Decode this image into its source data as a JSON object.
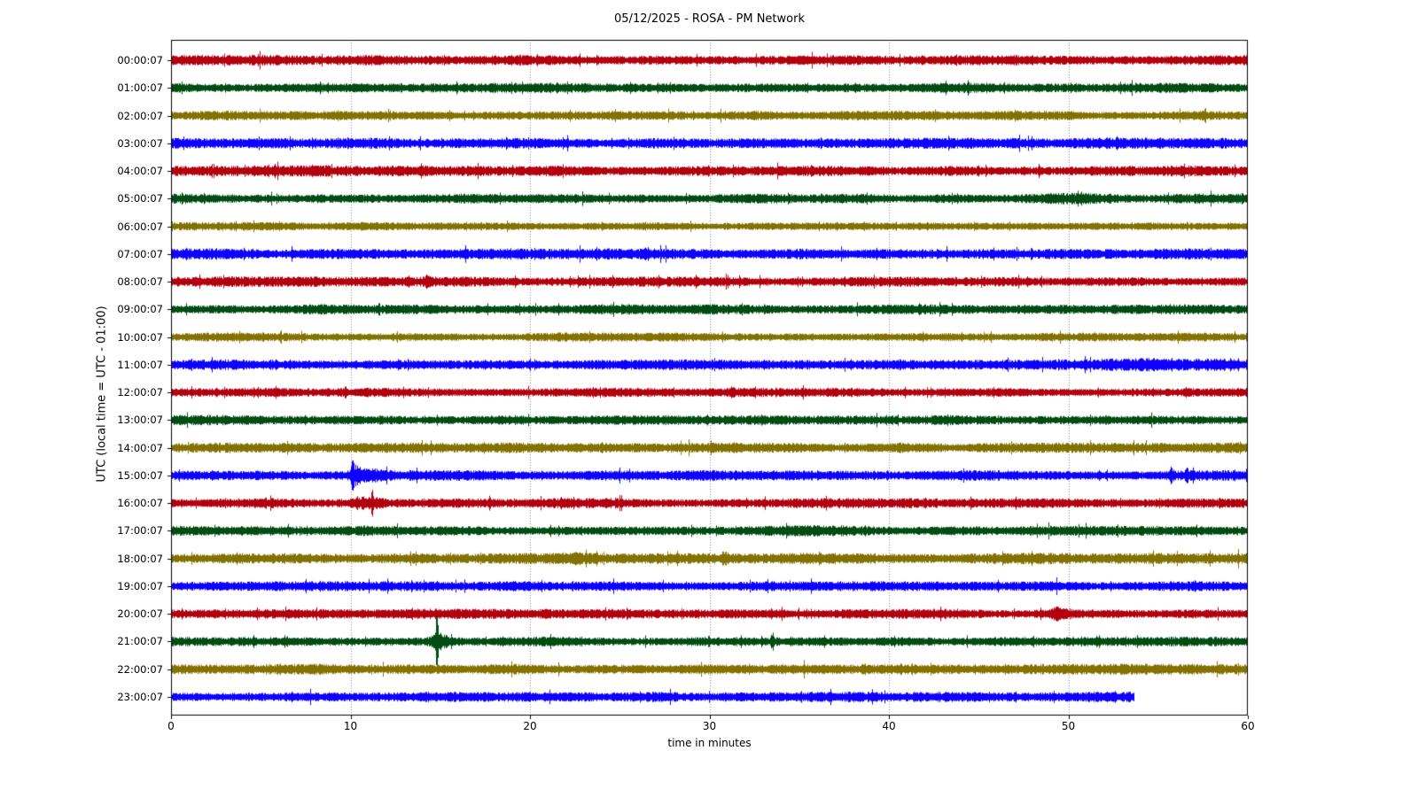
{
  "chart_data": {
    "type": "line",
    "subtype": "helicorder_dayplot",
    "title": "05/12/2025 - ROSA - PM Network",
    "xlabel": "time in minutes",
    "ylabel": "UTC (local time = UTC - 01:00)",
    "xlim": [
      0,
      60
    ],
    "x_ticks": [
      0,
      10,
      20,
      30,
      40,
      50,
      60
    ],
    "grid": {
      "vertical_dotted": true,
      "color": "#8a8a8a"
    },
    "axis_color": "#000000",
    "background_color": "#ffffff",
    "colors_cycle": [
      "#B2000F",
      "#004C12",
      "#847200",
      "#0E01FF"
    ],
    "rows": [
      {
        "label": "00:00:07",
        "color": "#B2000F",
        "amp": 1.0,
        "end_minute": 60,
        "events": []
      },
      {
        "label": "01:00:07",
        "color": "#004C12",
        "amp": 0.95,
        "end_minute": 60,
        "events": []
      },
      {
        "label": "02:00:07",
        "color": "#847200",
        "amp": 0.9,
        "end_minute": 60,
        "events": []
      },
      {
        "label": "03:00:07",
        "color": "#0E01FF",
        "amp": 1.05,
        "end_minute": 60,
        "events": []
      },
      {
        "label": "04:00:07",
        "color": "#B2000F",
        "amp": 1.0,
        "end_minute": 60,
        "events": [
          {
            "minute": 7.5,
            "gain": 1.2,
            "width": 4
          }
        ]
      },
      {
        "label": "05:00:07",
        "color": "#004C12",
        "amp": 0.95,
        "end_minute": 60,
        "events": [
          {
            "minute": 50,
            "gain": 1.3,
            "width": 1.5
          }
        ]
      },
      {
        "label": "06:00:07",
        "color": "#847200",
        "amp": 0.85,
        "end_minute": 60,
        "events": []
      },
      {
        "label": "07:00:07",
        "color": "#0E01FF",
        "amp": 1.05,
        "end_minute": 60,
        "events": []
      },
      {
        "label": "08:00:07",
        "color": "#B2000F",
        "amp": 0.95,
        "end_minute": 60,
        "events": [
          {
            "minute": 14.3,
            "gain": 1.8,
            "width": 0.08
          }
        ]
      },
      {
        "label": "09:00:07",
        "color": "#004C12",
        "amp": 1.0,
        "end_minute": 60,
        "events": []
      },
      {
        "label": "10:00:07",
        "color": "#847200",
        "amp": 0.85,
        "end_minute": 60,
        "events": []
      },
      {
        "label": "11:00:07",
        "color": "#0E01FF",
        "amp": 1.0,
        "end_minute": 60,
        "events": [
          {
            "minute": 53,
            "gain": 1.4,
            "width": 5
          },
          {
            "minute": 58,
            "gain": 1.45,
            "width": 1.2
          }
        ]
      },
      {
        "label": "12:00:07",
        "color": "#B2000F",
        "amp": 0.9,
        "end_minute": 60,
        "events": [
          {
            "minute": 31.2,
            "gain": 1.5,
            "width": 0.1
          }
        ]
      },
      {
        "label": "13:00:07",
        "color": "#004C12",
        "amp": 0.95,
        "end_minute": 60,
        "events": []
      },
      {
        "label": "14:00:07",
        "color": "#847200",
        "amp": 1.0,
        "end_minute": 60,
        "events": []
      },
      {
        "label": "15:00:07",
        "color": "#0E01FF",
        "amp": 1.0,
        "end_minute": 60,
        "events": [
          {
            "minute": 10.1,
            "gain": 4.8,
            "width": 0.06
          },
          {
            "minute": 10.35,
            "gain": 2.4,
            "width": 0.18
          },
          {
            "minute": 10.9,
            "gain": 1.5,
            "width": 0.6
          },
          {
            "minute": 55.7,
            "gain": 2.4,
            "width": 0.05
          },
          {
            "minute": 56.6,
            "gain": 2.4,
            "width": 0.05
          }
        ]
      },
      {
        "label": "16:00:07",
        "color": "#B2000F",
        "amp": 0.95,
        "end_minute": 60,
        "events": [
          {
            "minute": 11.2,
            "gain": 3.2,
            "width": 0.06
          },
          {
            "minute": 11.0,
            "gain": 1.6,
            "width": 0.6
          },
          {
            "minute": 10.4,
            "gain": 1.7,
            "width": 0.1
          }
        ]
      },
      {
        "label": "17:00:07",
        "color": "#004C12",
        "amp": 0.95,
        "end_minute": 60,
        "events": [
          {
            "minute": 37,
            "gain": 1.35,
            "width": 1.5
          }
        ]
      },
      {
        "label": "18:00:07",
        "color": "#847200",
        "amp": 1.05,
        "end_minute": 60,
        "events": [
          {
            "minute": 30.8,
            "gain": 1.6,
            "width": 0.12
          },
          {
            "minute": 22.5,
            "gain": 1.3,
            "width": 0.8
          }
        ]
      },
      {
        "label": "19:00:07",
        "color": "#0E01FF",
        "amp": 0.95,
        "end_minute": 60,
        "events": []
      },
      {
        "label": "20:00:07",
        "color": "#B2000F",
        "amp": 0.95,
        "end_minute": 60,
        "events": [
          {
            "minute": 49.5,
            "gain": 1.9,
            "width": 0.35
          }
        ]
      },
      {
        "label": "21:00:07",
        "color": "#004C12",
        "amp": 0.9,
        "end_minute": 60,
        "events": [
          {
            "minute": 14.8,
            "gain": 8.5,
            "width": 0.05
          },
          {
            "minute": 14.95,
            "gain": 2.2,
            "width": 0.3
          },
          {
            "minute": 33.5,
            "gain": 2.6,
            "width": 0.05
          }
        ]
      },
      {
        "label": "22:00:07",
        "color": "#847200",
        "amp": 1.0,
        "end_minute": 60,
        "events": []
      },
      {
        "label": "23:00:07",
        "color": "#0E01FF",
        "amp": 1.0,
        "end_minute": 53.7,
        "events": []
      }
    ]
  }
}
